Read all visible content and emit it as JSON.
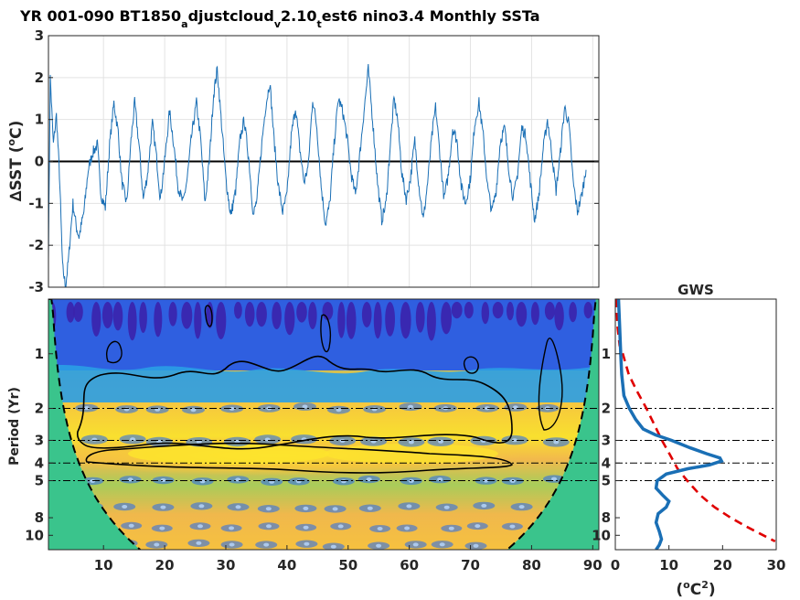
{
  "title": {
    "part1": "YR 001-090 BT1850",
    "sub1": "a",
    "part2": "djustcloud",
    "sub2": "v",
    "part3": "2.10",
    "sub3": "t",
    "part4": "est6 nino3.4 Monthly SSTa"
  },
  "chart_data": [
    {
      "type": "line",
      "name": "timeseries",
      "ylabel_delta": "∆",
      "ylabel_text": "SST (",
      "ylabel_sup": "o",
      "ylabel_end": "C)",
      "xlim": [
        1,
        91
      ],
      "ylim": [
        -3,
        3
      ],
      "yticks": [
        -3,
        -2,
        -1,
        0,
        1,
        2,
        3
      ],
      "grid": true,
      "zero_line": true,
      "series_keypoints": [
        [
          1.0,
          -2.2
        ],
        [
          1.3,
          2.0
        ],
        [
          1.8,
          0.4
        ],
        [
          2.3,
          1.1
        ],
        [
          2.8,
          -0.3
        ],
        [
          3.3,
          -2.5
        ],
        [
          3.8,
          -3.0
        ],
        [
          4.3,
          -2.3
        ],
        [
          5.0,
          -1.0
        ],
        [
          5.6,
          -1.6
        ],
        [
          6.0,
          -1.8
        ],
        [
          6.8,
          -1.2
        ],
        [
          7.5,
          -0.2
        ],
        [
          8.2,
          0.2
        ],
        [
          9.0,
          0.4
        ],
        [
          9.6,
          -0.8
        ],
        [
          10.3,
          -1.1
        ],
        [
          11.0,
          0.4
        ],
        [
          11.7,
          1.4
        ],
        [
          12.4,
          0.7
        ],
        [
          13.0,
          -0.5
        ],
        [
          13.8,
          -1.0
        ],
        [
          14.5,
          0.5
        ],
        [
          15.1,
          1.4
        ],
        [
          15.8,
          0.4
        ],
        [
          16.5,
          -0.9
        ],
        [
          17.2,
          -0.3
        ],
        [
          18.0,
          0.9
        ],
        [
          18.6,
          0.2
        ],
        [
          19.3,
          -0.9
        ],
        [
          20.0,
          0.0
        ],
        [
          20.8,
          1.2
        ],
        [
          21.5,
          0.4
        ],
        [
          22.2,
          -0.6
        ],
        [
          23.0,
          -1.0
        ],
        [
          23.7,
          -0.4
        ],
        [
          24.4,
          0.6
        ],
        [
          25.2,
          1.4
        ],
        [
          25.9,
          0.5
        ],
        [
          26.6,
          -1.0
        ],
        [
          27.3,
          0.0
        ],
        [
          28.0,
          1.6
        ],
        [
          28.6,
          2.2
        ],
        [
          29.3,
          0.9
        ],
        [
          30.0,
          -0.4
        ],
        [
          30.8,
          -1.3
        ],
        [
          31.6,
          -0.7
        ],
        [
          32.3,
          0.5
        ],
        [
          33.0,
          1.0
        ],
        [
          33.8,
          0.0
        ],
        [
          34.5,
          -1.3
        ],
        [
          35.1,
          -0.9
        ],
        [
          35.8,
          0.3
        ],
        [
          36.5,
          1.3
        ],
        [
          37.2,
          1.9
        ],
        [
          37.9,
          0.5
        ],
        [
          38.6,
          -0.6
        ],
        [
          39.3,
          -1.2
        ],
        [
          40.0,
          -0.8
        ],
        [
          40.7,
          0.6
        ],
        [
          41.4,
          1.3
        ],
        [
          42.1,
          0.3
        ],
        [
          42.8,
          -0.5
        ],
        [
          43.5,
          -0.1
        ],
        [
          44.2,
          1.5
        ],
        [
          44.9,
          0.8
        ],
        [
          45.6,
          -0.6
        ],
        [
          46.3,
          -1.5
        ],
        [
          47.0,
          -1.0
        ],
        [
          47.7,
          0.4
        ],
        [
          48.4,
          1.5
        ],
        [
          49.1,
          1.2
        ],
        [
          49.8,
          0.6
        ],
        [
          50.5,
          -0.3
        ],
        [
          51.2,
          -0.8
        ],
        [
          51.8,
          0.0
        ],
        [
          52.6,
          1.2
        ],
        [
          53.3,
          2.2
        ],
        [
          54.0,
          1.0
        ],
        [
          54.8,
          -0.5
        ],
        [
          55.5,
          -1.4
        ],
        [
          56.2,
          -1.0
        ],
        [
          56.8,
          0.2
        ],
        [
          57.5,
          1.5
        ],
        [
          58.1,
          1.0
        ],
        [
          58.8,
          -0.3
        ],
        [
          59.5,
          -0.9
        ],
        [
          60.2,
          -0.4
        ],
        [
          60.9,
          0.5
        ],
        [
          61.6,
          -0.6
        ],
        [
          62.3,
          -1.4
        ],
        [
          63.0,
          -0.5
        ],
        [
          63.7,
          0.6
        ],
        [
          64.3,
          1.3
        ],
        [
          65.0,
          0.2
        ],
        [
          65.7,
          -0.9
        ],
        [
          66.4,
          -0.3
        ],
        [
          67.1,
          0.8
        ],
        [
          67.8,
          0.5
        ],
        [
          68.5,
          -0.6
        ],
        [
          69.2,
          -1.0
        ],
        [
          70.0,
          -0.4
        ],
        [
          70.7,
          0.9
        ],
        [
          71.4,
          1.4
        ],
        [
          72.1,
          0.6
        ],
        [
          72.8,
          -0.6
        ],
        [
          73.5,
          -1.2
        ],
        [
          74.2,
          -0.7
        ],
        [
          74.9,
          0.5
        ],
        [
          75.6,
          0.8
        ],
        [
          76.3,
          -0.2
        ],
        [
          77.0,
          -0.9
        ],
        [
          77.7,
          -0.3
        ],
        [
          78.4,
          0.8
        ],
        [
          79.1,
          0.6
        ],
        [
          79.8,
          -0.5
        ],
        [
          80.5,
          -1.4
        ],
        [
          81.2,
          -0.8
        ],
        [
          81.9,
          0.3
        ],
        [
          82.6,
          1.0
        ],
        [
          83.3,
          0.2
        ],
        [
          84.0,
          -0.7
        ],
        [
          84.7,
          0.2
        ],
        [
          85.4,
          1.3
        ],
        [
          86.1,
          0.9
        ],
        [
          86.8,
          -0.5
        ],
        [
          87.5,
          -1.2
        ],
        [
          88.2,
          -0.8
        ],
        [
          88.9,
          -0.2
        ]
      ]
    },
    {
      "type": "heatmap",
      "name": "wavelet-power",
      "ylabel": "Period (Yr)",
      "xlim": [
        1,
        91
      ],
      "xticks": [
        10,
        20,
        30,
        40,
        50,
        60,
        70,
        80,
        90
      ],
      "ylim": [
        0.5,
        12
      ],
      "yscale": "log2",
      "yticks": [
        1,
        2,
        3,
        4,
        5,
        8,
        10
      ],
      "ref_periods": [
        2,
        3,
        4,
        5
      ],
      "cone_of_influence": true,
      "significance_contours": true
    },
    {
      "type": "line",
      "name": "global-wavelet-spectrum",
      "title": "GWS",
      "xlabel_text": "(",
      "xlabel_sup_o": "o",
      "xlabel_mid": "C",
      "xlabel_sup_2": "2",
      "xlabel_end": ")",
      "xlim": [
        0,
        30
      ],
      "xticks": [
        0,
        10,
        20,
        30
      ],
      "ylim": [
        0.5,
        12
      ],
      "yscale": "log2",
      "yticks": [
        1,
        2,
        3,
        4,
        5,
        8,
        10
      ],
      "ref_periods": [
        2,
        3,
        4,
        5
      ],
      "series": [
        {
          "name": "spectrum",
          "color": "#1a6fb5",
          "points": [
            [
              0.6,
              0.5
            ],
            [
              0.8,
              0.7
            ],
            [
              1.0,
              1.0
            ],
            [
              1.2,
              1.3
            ],
            [
              1.6,
              1.7
            ],
            [
              2.6,
              2.0
            ],
            [
              3.8,
              2.3
            ],
            [
              5.2,
              2.6
            ],
            [
              7.5,
              2.8
            ],
            [
              10.5,
              3.0
            ],
            [
              14.0,
              3.3
            ],
            [
              17.0,
              3.55
            ],
            [
              19.5,
              3.75
            ],
            [
              19.8,
              3.9
            ],
            [
              17.5,
              4.1
            ],
            [
              13.5,
              4.3
            ],
            [
              9.5,
              4.6
            ],
            [
              7.8,
              5.0
            ],
            [
              7.6,
              5.5
            ],
            [
              8.8,
              6.0
            ],
            [
              10.0,
              6.5
            ],
            [
              9.5,
              7.0
            ],
            [
              8.0,
              7.6
            ],
            [
              7.6,
              8.5
            ],
            [
              8.2,
              9.5
            ],
            [
              8.6,
              10.5
            ],
            [
              8.2,
              11.3
            ],
            [
              7.6,
              12.0
            ]
          ]
        },
        {
          "name": "significance",
          "color": "#e00000",
          "points": [
            [
              0.2,
              0.5
            ],
            [
              0.4,
              0.7
            ],
            [
              0.8,
              0.9
            ],
            [
              1.4,
              1.0
            ],
            [
              2.5,
              1.3
            ],
            [
              4.0,
              1.6
            ],
            [
              5.8,
              2.0
            ],
            [
              7.4,
              2.5
            ],
            [
              8.7,
              3.0
            ],
            [
              10.2,
              3.6
            ],
            [
              11.6,
              4.3
            ],
            [
              13.4,
              5.0
            ],
            [
              15.8,
              6.0
            ],
            [
              18.5,
              7.0
            ],
            [
              21.5,
              8.0
            ],
            [
              24.6,
              9.0
            ],
            [
              27.6,
              10.0
            ],
            [
              29.8,
              10.8
            ]
          ]
        }
      ]
    }
  ],
  "colors": {
    "background": "#ffffff",
    "coi_fill": "#3ac48c",
    "series_line": "#1a6fb5",
    "significance_line": "#e00000",
    "grid": "#e3e3e3",
    "axis": "#262626"
  }
}
